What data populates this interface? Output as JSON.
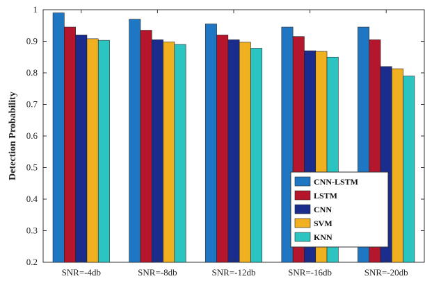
{
  "chart_data": {
    "type": "bar",
    "title": "",
    "xlabel": "",
    "ylabel": "Detection Probability",
    "ylim": [
      0.2,
      1
    ],
    "yticks": [
      0.2,
      0.3,
      0.4,
      0.5,
      0.6,
      0.7,
      0.8,
      0.9,
      1
    ],
    "ytick_labels": [
      "0.2",
      "0.3",
      "0.4",
      "0.5",
      "0.6",
      "0.7",
      "0.8",
      "0.9",
      "1"
    ],
    "grid": false,
    "legend_position": "bottom-right",
    "categories": [
      "SNR=-4db",
      "SNR=-8db",
      "SNR=-12db",
      "SNR=-16db",
      "SNR=-20db"
    ],
    "series": [
      {
        "name": "CNN-LSTM",
        "color": "#1f77c4",
        "values": [
          0.99,
          0.97,
          0.955,
          0.945,
          0.945
        ]
      },
      {
        "name": "LSTM",
        "color": "#b5162c",
        "values": [
          0.945,
          0.935,
          0.92,
          0.915,
          0.905
        ]
      },
      {
        "name": "CNN",
        "color": "#1a2d8c",
        "values": [
          0.92,
          0.905,
          0.905,
          0.87,
          0.82
        ]
      },
      {
        "name": "SVM",
        "color": "#f0b020",
        "values": [
          0.908,
          0.898,
          0.897,
          0.868,
          0.813
        ]
      },
      {
        "name": "KNN",
        "color": "#2cc4c0",
        "values": [
          0.903,
          0.89,
          0.878,
          0.85,
          0.79
        ]
      }
    ]
  }
}
